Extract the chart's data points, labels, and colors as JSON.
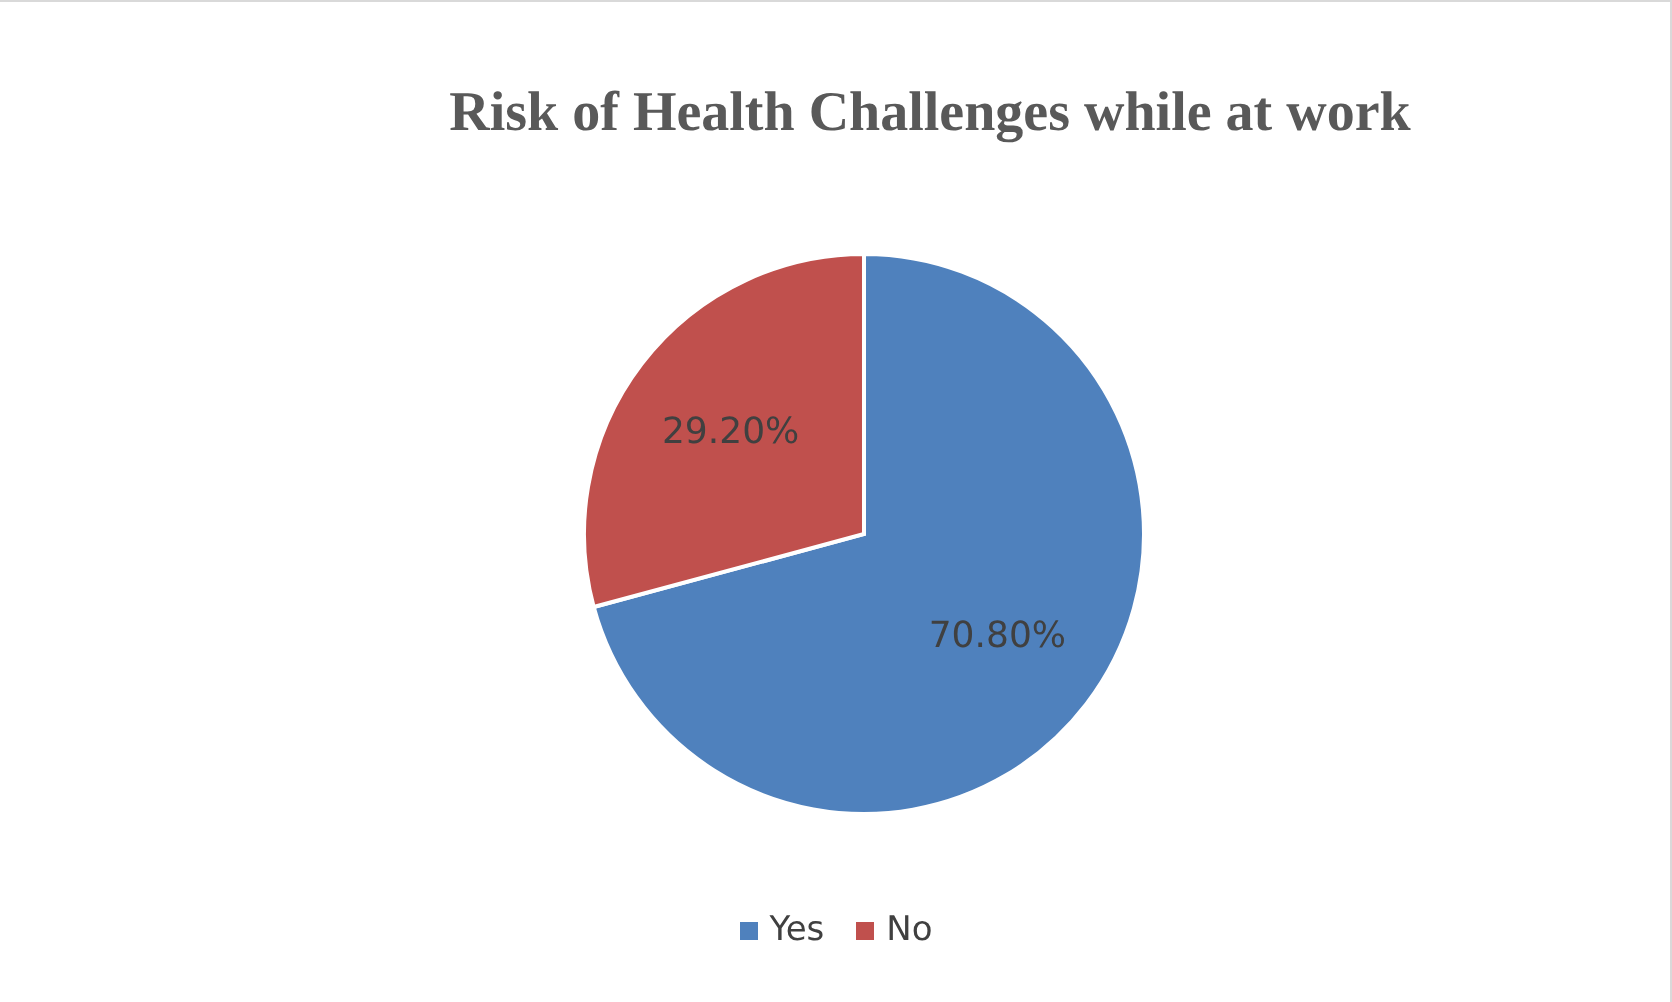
{
  "chart_data": {
    "type": "pie",
    "title": "Risk of Health Challenges while at work",
    "categories": [
      "Yes",
      "No"
    ],
    "values": [
      70.8,
      29.2
    ],
    "colors": [
      "#4f81bd",
      "#c0504d"
    ],
    "value_labels": [
      "70.80%",
      "29.20%"
    ],
    "legend": "bottom"
  }
}
